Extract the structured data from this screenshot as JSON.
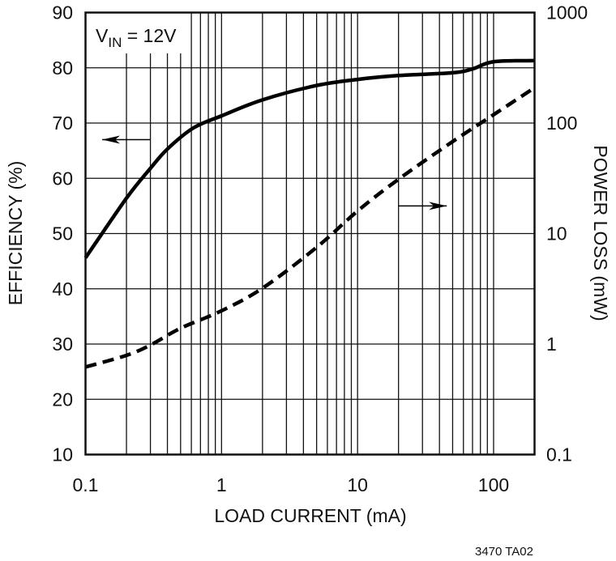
{
  "chart_data": {
    "type": "line",
    "title": "",
    "annotation": {
      "main": "V",
      "sub": "IN",
      "rest": " = 12V"
    },
    "footer": "3470 TA02",
    "xlabel": "LOAD CURRENT (mA)",
    "ylabel": "EFFICIENCY (%)",
    "y2label": "POWER LOSS (mW)",
    "xscale": "log",
    "xlim": [
      0.1,
      200
    ],
    "ylim": [
      10,
      90
    ],
    "y2scale": "log",
    "y2lim": [
      0.1,
      1000
    ],
    "grid": true,
    "x_ticks": [
      "0.1",
      "1",
      "10",
      "100"
    ],
    "y_ticks": [
      "10",
      "20",
      "30",
      "40",
      "50",
      "60",
      "70",
      "80",
      "90"
    ],
    "y2_ticks": [
      "0.1",
      "1",
      "10",
      "100",
      "1000"
    ],
    "series": [
      {
        "axis": "left",
        "style": "solid",
        "x": [
          0.1,
          0.2,
          0.3,
          0.4,
          0.62,
          1,
          2,
          5,
          10,
          20,
          50,
          70,
          100,
          200
        ],
        "y": [
          45.6,
          56.4,
          61.8,
          65.3,
          69.1,
          71.3,
          74.2,
          76.8,
          77.9,
          78.6,
          79.1,
          79.8,
          81.1,
          81.3
        ]
      },
      {
        "axis": "right",
        "style": "dashed",
        "x": [
          0.1,
          0.2,
          0.3,
          0.5,
          1,
          2,
          5,
          10,
          20,
          50,
          100,
          200
        ],
        "y": [
          0.62,
          0.79,
          0.98,
          1.39,
          2.0,
          3.2,
          7.5,
          16,
          31,
          68,
          119,
          209
        ]
      }
    ],
    "arrows": [
      {
        "points_to": "left",
        "near_x": 0.2,
        "near_y_left": 67
      },
      {
        "points_to": "right",
        "near_x": 30,
        "near_y_left": 55
      }
    ]
  }
}
